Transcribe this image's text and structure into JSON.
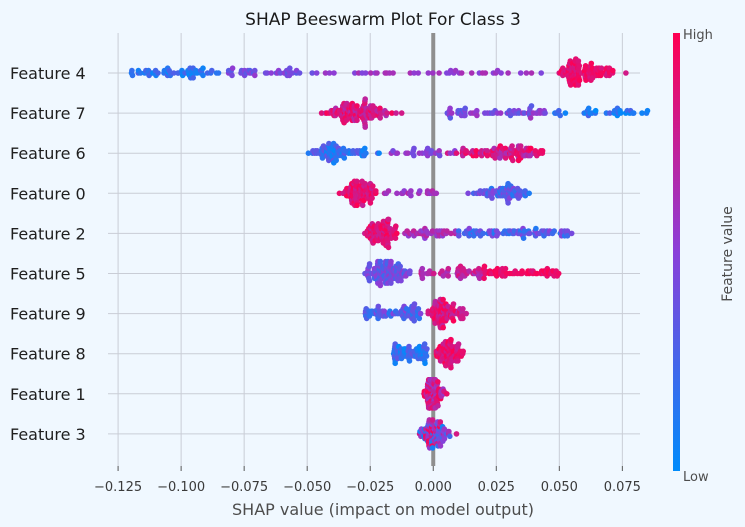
{
  "chart_data": {
    "type": "scatter",
    "subtype": "shap-beeswarm",
    "title": "SHAP Beeswarm Plot For Class 3",
    "xlabel": "SHAP value (impact on model output)",
    "ylabel": "",
    "xlim": [
      -0.129,
      0.082
    ],
    "xticks": [
      -0.125,
      -0.1,
      -0.075,
      -0.05,
      -0.025,
      0.0,
      0.025,
      0.05,
      0.075
    ],
    "xtick_labels": [
      "−0.125",
      "−0.100",
      "−0.075",
      "−0.050",
      "−0.025",
      "0.000",
      "0.025",
      "0.050",
      "0.075"
    ],
    "grid": true,
    "colorbar": {
      "label": "Feature value",
      "high": "High",
      "low": "Low",
      "low_color": "#008bfb",
      "high_color": "#ff0052"
    },
    "features": [
      {
        "name": "Feature 4",
        "groups": [
          {
            "min": -0.12,
            "max": -0.085,
            "n": 60,
            "c0": 0.0,
            "c1": 0.3
          },
          {
            "min": -0.085,
            "max": -0.045,
            "n": 40,
            "c0": 0.3,
            "c1": 0.55
          },
          {
            "min": -0.045,
            "max": 0.045,
            "n": 40,
            "c0": 0.45,
            "c1": 0.65
          },
          {
            "min": 0.047,
            "max": 0.078,
            "n": 110,
            "c0": 0.8,
            "c1": 1.0,
            "peak": 0.058
          }
        ]
      },
      {
        "name": "Feature 7",
        "groups": [
          {
            "min": -0.046,
            "max": -0.01,
            "n": 120,
            "c0": 0.65,
            "c1": 1.0,
            "peak": -0.03
          },
          {
            "min": 0.005,
            "max": 0.045,
            "n": 60,
            "c0": 0.3,
            "c1": 0.6
          },
          {
            "min": 0.045,
            "max": 0.085,
            "n": 35,
            "c0": 0.0,
            "c1": 0.3
          }
        ]
      },
      {
        "name": "Feature 6",
        "groups": [
          {
            "min": -0.051,
            "max": -0.018,
            "n": 80,
            "c0": 0.0,
            "c1": 0.4,
            "peak": -0.04
          },
          {
            "min": -0.018,
            "max": 0.01,
            "n": 25,
            "c0": 0.4,
            "c1": 0.6
          },
          {
            "min": 0.0,
            "max": 0.05,
            "n": 100,
            "c0": 0.6,
            "c1": 1.0,
            "peak": 0.03
          }
        ]
      },
      {
        "name": "Feature 0",
        "groups": [
          {
            "min": -0.042,
            "max": -0.02,
            "n": 90,
            "c0": 0.75,
            "c1": 1.0,
            "peak": -0.03
          },
          {
            "min": -0.02,
            "max": 0.002,
            "n": 20,
            "c0": 0.5,
            "c1": 0.7
          },
          {
            "min": 0.005,
            "max": 0.04,
            "n": 70,
            "c0": 0.1,
            "c1": 0.5,
            "peak": 0.028
          }
        ]
      },
      {
        "name": "Feature 2",
        "groups": [
          {
            "min": -0.031,
            "max": -0.012,
            "n": 90,
            "c0": 0.75,
            "c1": 1.0,
            "peak": -0.02
          },
          {
            "min": -0.012,
            "max": 0.01,
            "n": 40,
            "c0": 0.5,
            "c1": 0.75
          },
          {
            "min": 0.01,
            "max": 0.055,
            "n": 80,
            "c0": 0.1,
            "c1": 0.5
          }
        ]
      },
      {
        "name": "Feature 5",
        "groups": [
          {
            "min": -0.031,
            "max": -0.005,
            "n": 110,
            "c0": 0.2,
            "c1": 0.55,
            "peak": -0.018
          },
          {
            "min": -0.005,
            "max": 0.02,
            "n": 50,
            "c0": 0.6,
            "c1": 0.85
          },
          {
            "min": 0.02,
            "max": 0.05,
            "n": 60,
            "c0": 0.85,
            "c1": 1.0
          }
        ]
      },
      {
        "name": "Feature 9",
        "groups": [
          {
            "min": -0.027,
            "max": -0.005,
            "n": 70,
            "c0": 0.1,
            "c1": 0.5
          },
          {
            "min": -0.005,
            "max": 0.019,
            "n": 90,
            "c0": 0.7,
            "c1": 1.0,
            "peak": 0.004
          }
        ]
      },
      {
        "name": "Feature 8",
        "groups": [
          {
            "min": -0.016,
            "max": -0.002,
            "n": 70,
            "c0": 0.0,
            "c1": 0.35
          },
          {
            "min": -0.002,
            "max": 0.015,
            "n": 80,
            "c0": 0.75,
            "c1": 1.0,
            "peak": 0.006
          }
        ]
      },
      {
        "name": "Feature 1",
        "groups": [
          {
            "min": -0.004,
            "max": 0.007,
            "n": 110,
            "c0": 0.55,
            "c1": 1.0,
            "peak": -0.001
          }
        ]
      },
      {
        "name": "Feature 3",
        "groups": [
          {
            "min": -0.007,
            "max": 0.01,
            "n": 90,
            "c0": 0.0,
            "c1": 1.0,
            "peak": 0.0
          }
        ]
      }
    ]
  }
}
